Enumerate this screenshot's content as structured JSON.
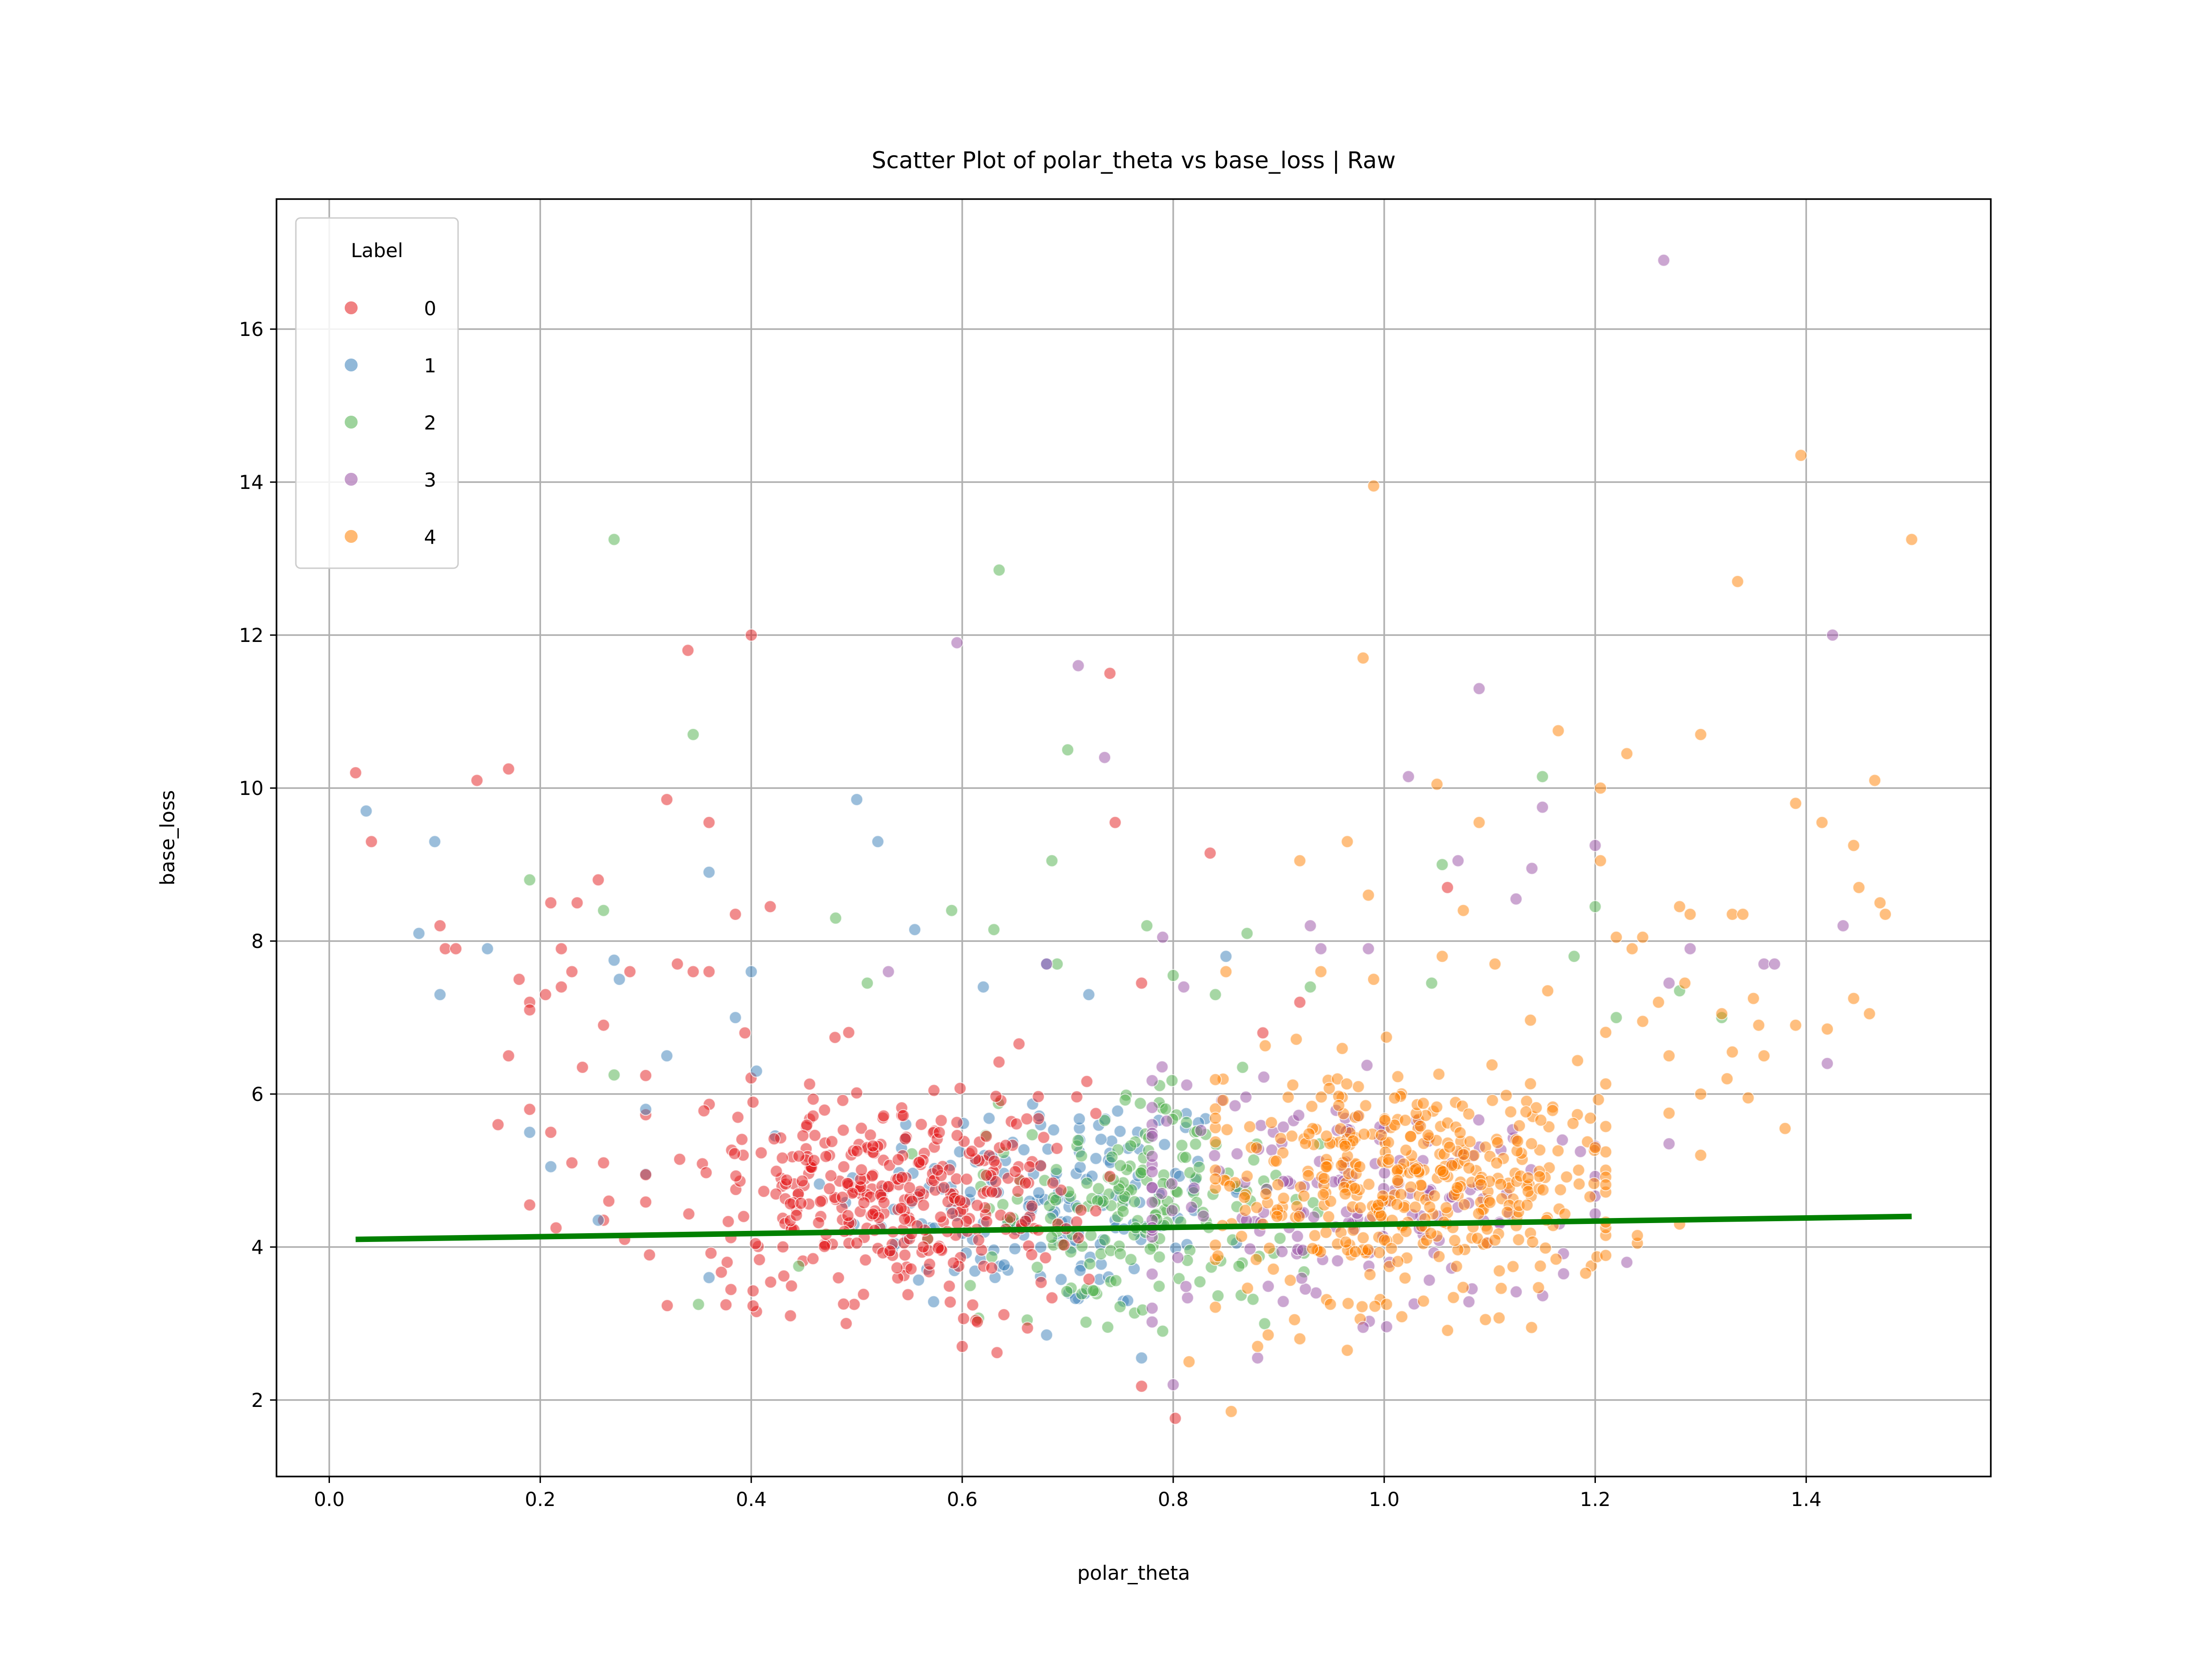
{
  "chart_data": {
    "type": "scatter",
    "title": "Scatter Plot of polar_theta vs base_loss | Raw",
    "xlabel": "polar_theta",
    "ylabel": "base_loss",
    "xlim": [
      -0.05,
      1.575
    ],
    "ylim": [
      1.0,
      17.7
    ],
    "xticks": [
      "0.0",
      "0.2",
      "0.4",
      "0.6",
      "0.8",
      "1.0",
      "1.2",
      "1.4"
    ],
    "yticks": [
      "2",
      "4",
      "6",
      "8",
      "10",
      "12",
      "14",
      "16"
    ],
    "grid": true,
    "legend": {
      "title": "Label",
      "position": "top-left",
      "entries": [
        "0",
        "1",
        "2",
        "3",
        "4"
      ]
    },
    "colors": {
      "0": "#e41a1c",
      "1": "#377eb8",
      "2": "#4daf4a",
      "3": "#984ea3",
      "4": "#ff7f00",
      "trend": "#008000"
    },
    "series": [
      {
        "name": "0",
        "clusters": [
          {
            "cx": 0.53,
            "cy": 4.7,
            "sx": 0.09,
            "sy": 0.7,
            "n": 380,
            "xmin": 0.3,
            "xmax": 0.74
          }
        ],
        "points": [
          [
            0.025,
            10.2
          ],
          [
            0.04,
            9.3
          ],
          [
            0.14,
            10.1
          ],
          [
            0.17,
            10.25
          ],
          [
            0.105,
            8.2
          ],
          [
            0.11,
            7.9
          ],
          [
            0.12,
            7.9
          ],
          [
            0.21,
            8.5
          ],
          [
            0.235,
            8.5
          ],
          [
            0.255,
            8.8
          ],
          [
            0.22,
            7.9
          ],
          [
            0.23,
            7.6
          ],
          [
            0.18,
            7.5
          ],
          [
            0.19,
            7.2
          ],
          [
            0.19,
            7.1
          ],
          [
            0.205,
            7.3
          ],
          [
            0.22,
            7.4
          ],
          [
            0.17,
            6.5
          ],
          [
            0.26,
            6.9
          ],
          [
            0.24,
            6.35
          ],
          [
            0.285,
            7.6
          ],
          [
            0.33,
            7.7
          ],
          [
            0.345,
            7.6
          ],
          [
            0.36,
            7.6
          ],
          [
            0.16,
            5.6
          ],
          [
            0.19,
            5.8
          ],
          [
            0.21,
            5.5
          ],
          [
            0.19,
            4.55
          ],
          [
            0.215,
            4.25
          ],
          [
            0.23,
            5.1
          ],
          [
            0.26,
            5.1
          ],
          [
            0.265,
            4.6
          ],
          [
            0.26,
            4.35
          ],
          [
            0.28,
            4.1
          ],
          [
            0.34,
            11.8
          ],
          [
            0.4,
            12.0
          ],
          [
            0.32,
            9.85
          ],
          [
            0.36,
            9.55
          ],
          [
            0.385,
            8.35
          ],
          [
            0.418,
            8.45
          ],
          [
            0.74,
            11.5
          ],
          [
            0.745,
            9.55
          ],
          [
            0.835,
            9.15
          ],
          [
            0.77,
            7.45
          ],
          [
            0.49,
            3.0
          ],
          [
            0.6,
            2.7
          ],
          [
            0.633,
            2.62
          ],
          [
            0.77,
            2.18
          ],
          [
            0.802,
            1.76
          ],
          [
            1.06,
            8.7
          ],
          [
            0.885,
            6.8
          ],
          [
            0.92,
            7.2
          ]
        ]
      },
      {
        "name": "1",
        "clusters": [
          {
            "cx": 0.68,
            "cy": 4.6,
            "sx": 0.1,
            "sy": 0.75,
            "n": 170,
            "xmin": 0.3,
            "xmax": 0.86
          }
        ],
        "points": [
          [
            0.035,
            9.7
          ],
          [
            0.1,
            9.3
          ],
          [
            0.085,
            8.1
          ],
          [
            0.15,
            7.9
          ],
          [
            0.105,
            7.3
          ],
          [
            0.27,
            7.75
          ],
          [
            0.275,
            7.5
          ],
          [
            0.36,
            8.9
          ],
          [
            0.5,
            9.85
          ],
          [
            0.52,
            9.3
          ],
          [
            0.555,
            8.15
          ],
          [
            0.4,
            7.6
          ],
          [
            0.385,
            7.0
          ],
          [
            0.32,
            6.5
          ],
          [
            0.3,
            5.8
          ],
          [
            0.21,
            5.05
          ],
          [
            0.19,
            5.5
          ],
          [
            0.255,
            4.35
          ],
          [
            0.36,
            3.6
          ],
          [
            0.405,
            6.3
          ],
          [
            0.68,
            2.85
          ],
          [
            0.77,
            2.55
          ],
          [
            0.68,
            7.7
          ],
          [
            0.72,
            7.3
          ],
          [
            0.85,
            7.8
          ],
          [
            0.62,
            7.4
          ]
        ]
      },
      {
        "name": "2",
        "clusters": [
          {
            "cx": 0.77,
            "cy": 4.6,
            "sx": 0.07,
            "sy": 0.75,
            "n": 190,
            "xmin": 0.55,
            "xmax": 0.95
          }
        ],
        "points": [
          [
            0.27,
            13.25
          ],
          [
            0.635,
            12.85
          ],
          [
            0.345,
            10.7
          ],
          [
            0.7,
            10.5
          ],
          [
            1.15,
            10.15
          ],
          [
            0.19,
            8.8
          ],
          [
            0.26,
            8.4
          ],
          [
            0.685,
            9.05
          ],
          [
            0.59,
            8.4
          ],
          [
            0.63,
            8.15
          ],
          [
            0.775,
            8.2
          ],
          [
            0.84,
            7.3
          ],
          [
            0.8,
            7.55
          ],
          [
            0.51,
            7.45
          ],
          [
            0.48,
            8.3
          ],
          [
            0.27,
            6.25
          ],
          [
            0.35,
            3.25
          ],
          [
            0.93,
            7.4
          ],
          [
            1.055,
            9.0
          ],
          [
            1.2,
            8.45
          ],
          [
            1.18,
            7.8
          ],
          [
            1.22,
            7.0
          ],
          [
            1.045,
            7.45
          ],
          [
            0.79,
            2.9
          ],
          [
            0.69,
            7.7
          ],
          [
            0.87,
            8.1
          ],
          [
            1.28,
            7.35
          ],
          [
            1.32,
            7.0
          ],
          [
            0.445,
            3.75
          ]
        ]
      },
      {
        "name": "3",
        "clusters": [
          {
            "cx": 0.96,
            "cy": 4.7,
            "sx": 0.13,
            "sy": 0.8,
            "n": 170,
            "xmin": 0.78,
            "xmax": 1.2
          }
        ],
        "points": [
          [
            1.265,
            16.9
          ],
          [
            0.595,
            11.9
          ],
          [
            0.71,
            11.6
          ],
          [
            1.09,
            11.3
          ],
          [
            1.425,
            12.0
          ],
          [
            0.735,
            10.4
          ],
          [
            1.023,
            10.15
          ],
          [
            1.07,
            9.05
          ],
          [
            1.15,
            9.75
          ],
          [
            1.2,
            9.25
          ],
          [
            1.14,
            8.95
          ],
          [
            1.125,
            8.55
          ],
          [
            0.985,
            7.9
          ],
          [
            0.93,
            8.2
          ],
          [
            0.94,
            7.9
          ],
          [
            0.79,
            8.05
          ],
          [
            1.435,
            8.2
          ],
          [
            1.36,
            7.7
          ],
          [
            1.37,
            7.7
          ],
          [
            1.42,
            6.4
          ],
          [
            1.27,
            7.45
          ],
          [
            1.29,
            7.9
          ],
          [
            1.23,
            3.8
          ],
          [
            1.27,
            5.35
          ],
          [
            0.88,
            2.55
          ],
          [
            0.8,
            2.2
          ],
          [
            1.17,
            3.65
          ],
          [
            0.81,
            7.4
          ],
          [
            0.53,
            7.6
          ],
          [
            0.68,
            7.7
          ],
          [
            0.98,
            2.95
          ]
        ]
      },
      {
        "name": "4",
        "clusters": [
          {
            "cx": 1.03,
            "cy": 4.9,
            "sx": 0.1,
            "sy": 0.8,
            "n": 430,
            "xmin": 0.84,
            "xmax": 1.21
          }
        ],
        "points": [
          [
            1.395,
            14.35
          ],
          [
            0.99,
            13.95
          ],
          [
            1.5,
            13.25
          ],
          [
            1.335,
            12.7
          ],
          [
            0.98,
            11.7
          ],
          [
            1.3,
            10.7
          ],
          [
            1.165,
            10.75
          ],
          [
            1.23,
            10.45
          ],
          [
            1.465,
            10.1
          ],
          [
            1.205,
            10.0
          ],
          [
            1.05,
            10.05
          ],
          [
            1.09,
            9.55
          ],
          [
            1.39,
            9.8
          ],
          [
            1.415,
            9.55
          ],
          [
            1.445,
            9.25
          ],
          [
            1.205,
            9.05
          ],
          [
            0.92,
            9.05
          ],
          [
            0.965,
            9.3
          ],
          [
            0.985,
            8.6
          ],
          [
            1.075,
            8.4
          ],
          [
            1.33,
            8.35
          ],
          [
            1.34,
            8.35
          ],
          [
            1.28,
            8.45
          ],
          [
            1.29,
            8.35
          ],
          [
            1.45,
            8.7
          ],
          [
            1.47,
            8.5
          ],
          [
            1.475,
            8.35
          ],
          [
            1.22,
            8.05
          ],
          [
            1.235,
            7.9
          ],
          [
            1.245,
            8.05
          ],
          [
            1.285,
            7.45
          ],
          [
            1.26,
            7.2
          ],
          [
            1.32,
            7.05
          ],
          [
            1.35,
            7.25
          ],
          [
            1.39,
            6.9
          ],
          [
            1.445,
            7.25
          ],
          [
            1.46,
            7.05
          ],
          [
            1.42,
            6.85
          ],
          [
            1.355,
            6.9
          ],
          [
            1.36,
            6.5
          ],
          [
            1.3,
            6.0
          ],
          [
            1.345,
            5.95
          ],
          [
            1.38,
            5.55
          ],
          [
            1.27,
            5.75
          ],
          [
            1.3,
            5.2
          ],
          [
            1.2,
            5.3
          ],
          [
            1.325,
            6.2
          ],
          [
            1.24,
            4.05
          ],
          [
            1.24,
            4.15
          ],
          [
            1.28,
            4.3
          ],
          [
            0.855,
            1.85
          ],
          [
            0.815,
            2.5
          ],
          [
            0.965,
            2.65
          ],
          [
            0.89,
            2.85
          ],
          [
            0.88,
            2.7
          ],
          [
            0.92,
            2.8
          ],
          [
            0.915,
            3.05
          ],
          [
            0.85,
            7.6
          ],
          [
            0.94,
            7.6
          ],
          [
            0.99,
            7.5
          ],
          [
            1.055,
            7.8
          ],
          [
            1.105,
            7.7
          ],
          [
            1.155,
            7.35
          ],
          [
            1.27,
            6.5
          ],
          [
            1.245,
            6.95
          ],
          [
            1.33,
            6.55
          ]
        ]
      }
    ],
    "trendline": {
      "x": [
        0.025,
        1.5
      ],
      "y": [
        4.1,
        4.4
      ]
    }
  }
}
